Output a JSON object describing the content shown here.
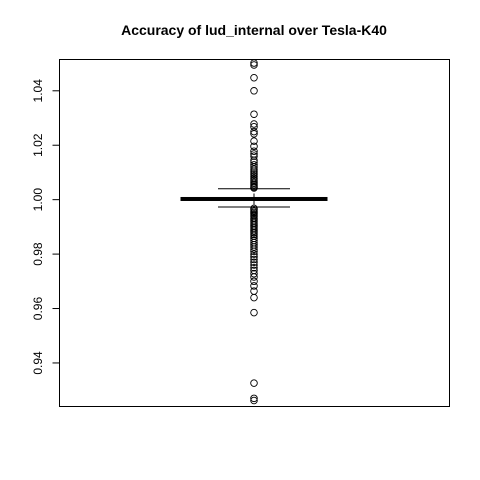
{
  "chart_data": {
    "type": "boxplot",
    "title": "Accuracy of lud_internal over Tesla-K40",
    "xlabel": "",
    "ylabel": "",
    "ylim": [
      0.924,
      1.0515
    ],
    "y_ticks": [
      0.94,
      0.96,
      0.98,
      1.0,
      1.02,
      1.04
    ],
    "y_tick_labels": [
      "0.94",
      "0.96",
      "0.98",
      "1.00",
      "1.02",
      "1.04"
    ],
    "grid": false,
    "box": {
      "q1": 0.9997,
      "median": 1.0002,
      "q3": 1.0008,
      "whisker_low": 0.9973,
      "whisker_high": 1.004
    },
    "outliers": [
      1.0502,
      1.0495,
      1.0448,
      1.04,
      1.0314,
      1.0278,
      1.0268,
      1.025,
      1.0242,
      1.0215,
      1.0196,
      1.0178,
      1.0168,
      1.016,
      1.0145,
      1.0138,
      1.0128,
      1.012,
      1.0112,
      1.0105,
      1.0098,
      1.0092,
      1.0085,
      1.0078,
      1.0072,
      1.0066,
      1.006,
      1.0055,
      1.005,
      1.0046,
      1.0043,
      0.9968,
      0.9963,
      0.9958,
      0.9953,
      0.9948,
      0.9943,
      0.9938,
      0.9932,
      0.9926,
      0.992,
      0.9914,
      0.9908,
      0.9902,
      0.9896,
      0.989,
      0.9884,
      0.9878,
      0.9872,
      0.9866,
      0.9858,
      0.985,
      0.9842,
      0.9834,
      0.9826,
      0.9818,
      0.981,
      0.98,
      0.979,
      0.978,
      0.977,
      0.976,
      0.975,
      0.974,
      0.9728,
      0.9716,
      0.97,
      0.9683,
      0.9664,
      0.964,
      0.9585,
      0.9326,
      0.927,
      0.9262
    ]
  }
}
